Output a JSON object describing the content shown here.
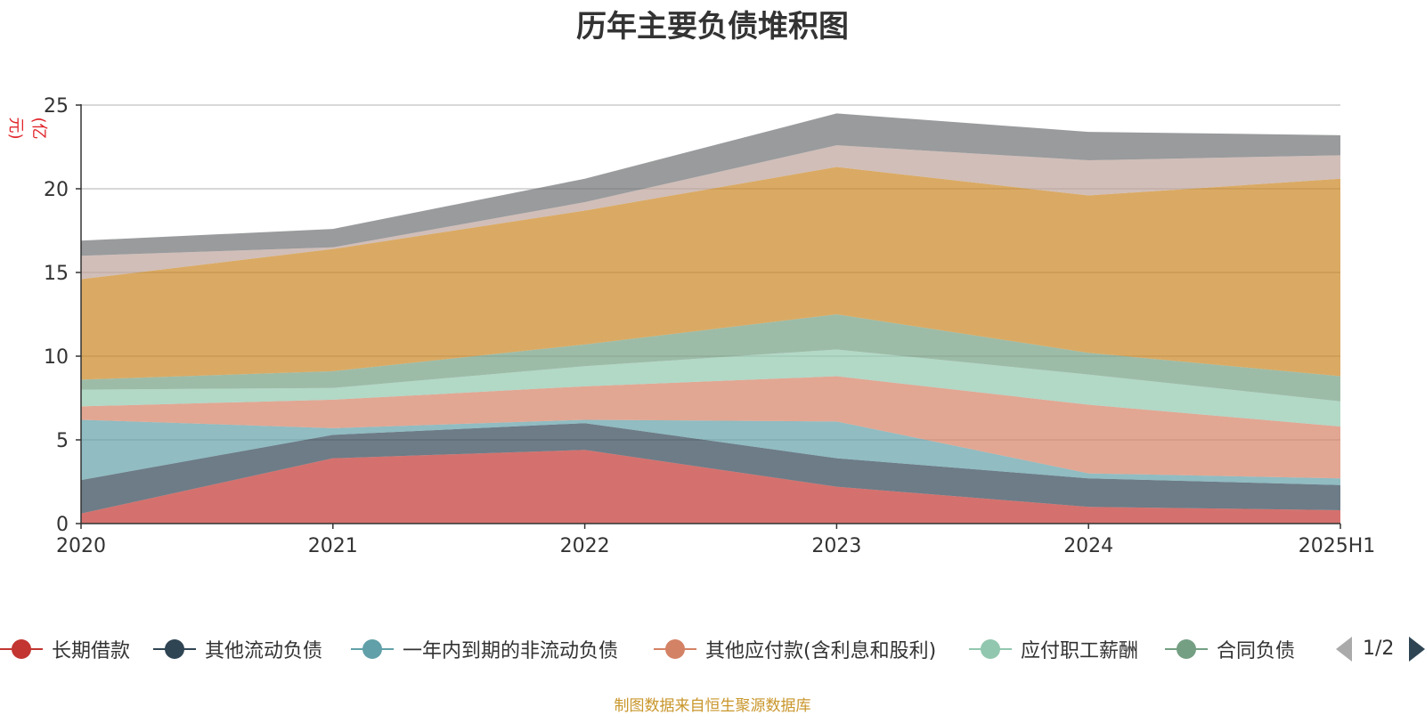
{
  "chart_data": {
    "type": "area",
    "stacked": true,
    "title": "历年主要负债堆积图",
    "ylabel": "(亿元)",
    "xlabel": "",
    "categories": [
      "2020",
      "2021",
      "2022",
      "2023",
      "2024",
      "2025H1"
    ],
    "ylim": [
      0,
      25
    ],
    "yticks": [
      0,
      5,
      10,
      15,
      20,
      25
    ],
    "grid": true,
    "legend_position": "bottom",
    "series": [
      {
        "name": "长期借款",
        "color": "#c23531",
        "values": [
          0.6,
          3.9,
          4.4,
          2.2,
          1.0,
          0.8
        ]
      },
      {
        "name": "其他流动负债",
        "color": "#2f4554",
        "values": [
          2.0,
          1.4,
          1.6,
          1.7,
          1.7,
          1.5
        ]
      },
      {
        "name": "一年内到期的非流动负债",
        "color": "#61a0a8",
        "values": [
          3.6,
          0.4,
          0.2,
          2.2,
          0.3,
          0.4
        ]
      },
      {
        "name": "其他应付款(含利息和股利)",
        "color": "#d48265",
        "values": [
          0.8,
          1.7,
          2.0,
          2.7,
          4.1,
          3.1
        ]
      },
      {
        "name": "应付职工薪酬",
        "color": "#91c7ae",
        "values": [
          1.0,
          0.7,
          1.2,
          1.6,
          1.8,
          1.5
        ]
      },
      {
        "name": "合同负债",
        "color": "#749f83",
        "values": [
          0.6,
          1.0,
          1.3,
          2.1,
          1.3,
          1.5
        ]
      },
      {
        "color": "#ca8622",
        "values": [
          6.0,
          7.3,
          8.0,
          8.8,
          9.4,
          11.8
        ]
      },
      {
        "color": "#bda29a",
        "values": [
          1.4,
          0.1,
          0.5,
          1.3,
          2.1,
          1.4
        ]
      },
      {
        "color": "#6e7074",
        "values": [
          0.9,
          1.1,
          1.4,
          1.9,
          1.7,
          1.2
        ]
      }
    ],
    "legend": {
      "visible_items": [
        "长期借款",
        "其他流动负债",
        "一年内到期的非流动负债",
        "其他应付款(含利息和股利)",
        "应付职工薪酬",
        "合同负债"
      ],
      "page": "1/2"
    },
    "source": "制图数据来自恒生聚源数据库"
  }
}
